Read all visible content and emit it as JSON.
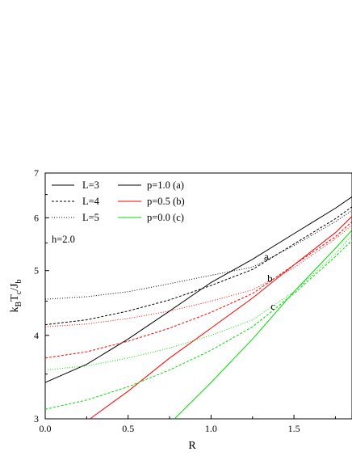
{
  "chart_data": {
    "type": "line",
    "x_label": "R",
    "y_label": {
      "main": "k",
      "sub1": "B",
      "mid": "T",
      "sub2": "c",
      "slash": "/J",
      "sub3": "b"
    },
    "xlim": [
      0,
      1.85
    ],
    "ylim": [
      3,
      7
    ],
    "y_scale": "log",
    "x_ticks": [
      0.0,
      0.5,
      1.0,
      1.5
    ],
    "x_tick_labels": [
      "0.0",
      "0.5",
      "1.0",
      "1.5"
    ],
    "y_ticks": [
      3,
      4,
      5,
      6,
      7
    ],
    "y_tick_labels": [
      "3",
      "4",
      "5",
      "6",
      "7"
    ],
    "annotation_text": "h=2.0",
    "grid": false,
    "legend_placement": "top-left",
    "legend_styles": [
      {
        "label": "L=3",
        "style": "solid"
      },
      {
        "label": "L=4",
        "style": "dashed"
      },
      {
        "label": "L=5",
        "style": "dotted"
      }
    ],
    "legend_colors": [
      {
        "label": "p=1.0 (a)",
        "color": "#000000"
      },
      {
        "label": "p=0.5 (b)",
        "color": "#ff0000"
      },
      {
        "label": "p=0.0 (c)",
        "color": "#00dd00"
      }
    ],
    "intersections": [
      {
        "label": "a",
        "x": 1.3,
        "y": 5.1
      },
      {
        "label": "b",
        "x": 1.32,
        "y": 4.73
      },
      {
        "label": "c",
        "x": 1.34,
        "y": 4.3
      }
    ],
    "series": [
      {
        "name": "L=3 p=1.0",
        "color": "#000000",
        "style": "solid",
        "x": [
          0,
          0.25,
          0.5,
          0.75,
          1.0,
          1.25,
          1.5,
          1.75,
          1.85
        ],
        "y": [
          3.4,
          3.62,
          3.95,
          4.35,
          4.8,
          5.2,
          5.68,
          6.2,
          6.45
        ]
      },
      {
        "name": "L=4 p=1.0",
        "color": "#000000",
        "style": "dashed",
        "x": [
          0,
          0.25,
          0.5,
          0.75,
          1.0,
          1.25,
          1.5,
          1.75,
          1.85
        ],
        "y": [
          4.15,
          4.22,
          4.35,
          4.52,
          4.75,
          5.02,
          5.48,
          5.98,
          6.23
        ]
      },
      {
        "name": "L=5 p=1.0",
        "color": "#000000",
        "style": "dotted",
        "x": [
          0,
          0.25,
          0.5,
          0.75,
          1.0,
          1.25,
          1.5,
          1.75,
          1.85
        ],
        "y": [
          4.53,
          4.57,
          4.65,
          4.78,
          4.92,
          5.06,
          5.45,
          5.92,
          6.15
        ]
      },
      {
        "name": "L=3 p=0.5",
        "color": "#ff0000",
        "style": "solid",
        "x": [
          0.27,
          0.5,
          0.75,
          1.0,
          1.25,
          1.5,
          1.75,
          1.85
        ],
        "y": [
          3.0,
          3.3,
          3.7,
          4.1,
          4.55,
          5.1,
          5.7,
          6.03
        ]
      },
      {
        "name": "L=4 p=0.5",
        "color": "#ff0000",
        "style": "dashed",
        "x": [
          0,
          0.25,
          0.5,
          0.75,
          1.0,
          1.25,
          1.5,
          1.75,
          1.85
        ],
        "y": [
          3.7,
          3.78,
          3.92,
          4.1,
          4.33,
          4.62,
          5.1,
          5.62,
          5.92
        ]
      },
      {
        "name": "L=5 p=0.5",
        "color": "#ff0000",
        "style": "dotted",
        "x": [
          0,
          0.25,
          0.5,
          0.75,
          1.0,
          1.25,
          1.5,
          1.75,
          1.85
        ],
        "y": [
          4.12,
          4.16,
          4.24,
          4.35,
          4.5,
          4.68,
          5.05,
          5.58,
          5.85
        ]
      },
      {
        "name": "L=3 p=0.0",
        "color": "#00dd00",
        "style": "solid",
        "x": [
          0.78,
          1.0,
          1.25,
          1.5,
          1.75,
          1.85
        ],
        "y": [
          3.0,
          3.4,
          3.95,
          4.65,
          5.4,
          5.75
        ]
      },
      {
        "name": "L=4 p=0.0",
        "color": "#00dd00",
        "style": "dashed",
        "x": [
          0,
          0.25,
          0.5,
          0.75,
          1.0,
          1.25,
          1.5,
          1.75,
          1.85
        ],
        "y": [
          3.1,
          3.2,
          3.35,
          3.55,
          3.8,
          4.12,
          4.62,
          5.25,
          5.55
        ]
      },
      {
        "name": "L=5 p=0.0",
        "color": "#00dd00",
        "style": "dotted",
        "x": [
          0,
          0.25,
          0.5,
          0.75,
          1.0,
          1.25,
          1.5,
          1.75,
          1.85
        ],
        "y": [
          3.55,
          3.6,
          3.7,
          3.83,
          4.0,
          4.22,
          4.65,
          5.3,
          5.65
        ]
      }
    ]
  }
}
